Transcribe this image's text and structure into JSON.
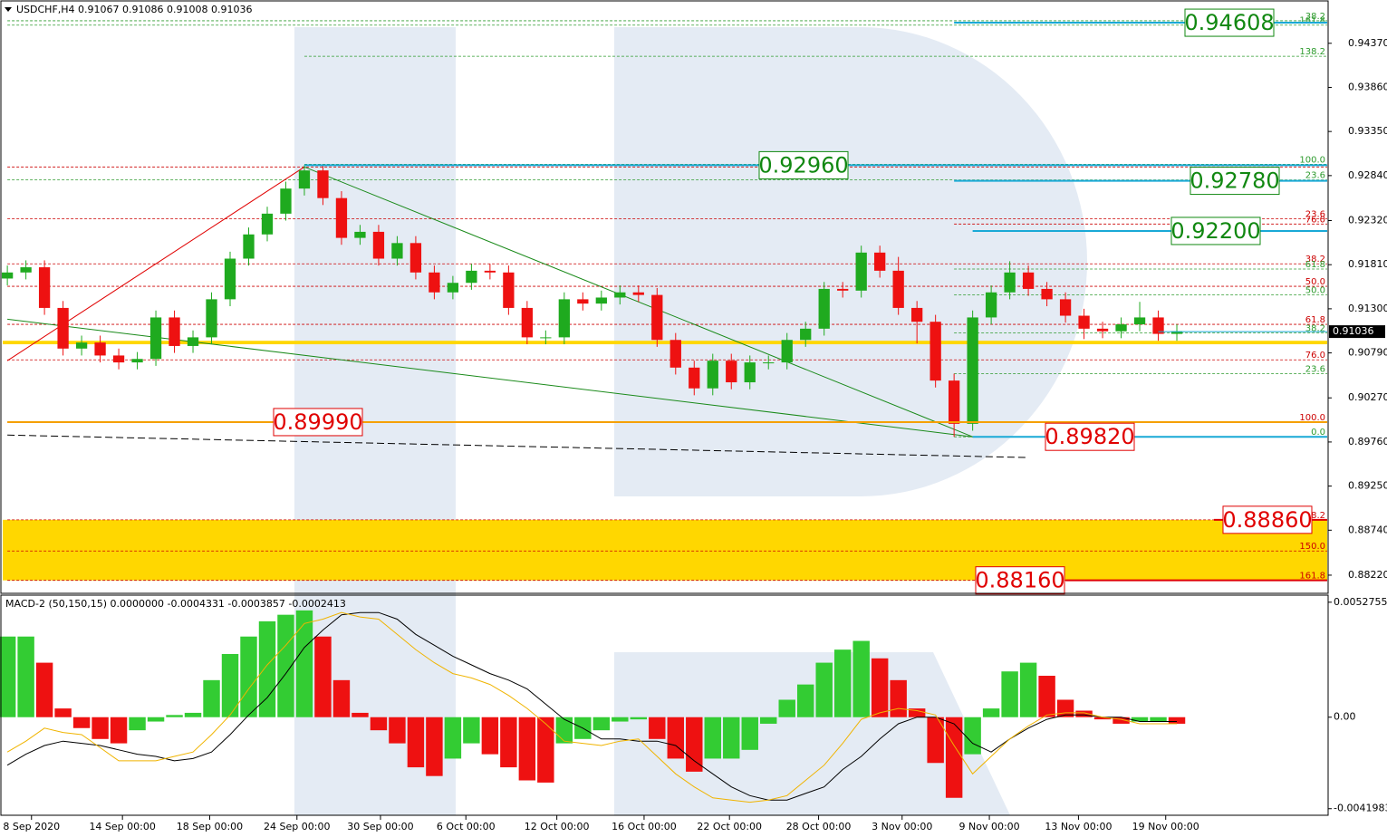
{
  "chart_data": [
    {
      "type": "candlestick",
      "title": "USDCHF,H4  0.91067 0.91086 0.91008 0.91036",
      "open": [
        0.9165,
        0.9172,
        0.9178,
        0.9131,
        0.9084,
        0.9091,
        0.9076,
        0.9068,
        0.9072,
        0.912,
        0.9087,
        0.9097,
        0.9141,
        0.9188,
        0.9216,
        0.924,
        0.9269,
        0.929,
        0.9258,
        0.9212,
        0.9219,
        0.9188,
        0.9206,
        0.9172,
        0.9149,
        0.916,
        0.9174,
        0.9172,
        0.9131,
        0.9097,
        0.9097,
        0.9141,
        0.9136,
        0.9143,
        0.9149,
        0.9146,
        0.9094,
        0.9062,
        0.9038,
        0.907,
        0.9045,
        0.9068,
        0.9068,
        0.9094,
        0.9107,
        0.9153,
        0.9151,
        0.9195,
        0.9174,
        0.9131,
        0.9115,
        0.9047,
        0.8997,
        0.912,
        0.9149,
        0.9172,
        0.9153,
        0.9141,
        0.9122,
        0.9107,
        0.9104,
        0.9112,
        0.912,
        0.9101
      ],
      "high": [
        0.918,
        0.9186,
        0.9186,
        0.9139,
        0.9099,
        0.9099,
        0.9084,
        0.908,
        0.9128,
        0.9128,
        0.9105,
        0.9149,
        0.9196,
        0.9224,
        0.9248,
        0.9277,
        0.9296,
        0.9296,
        0.9266,
        0.9227,
        0.9227,
        0.9214,
        0.9214,
        0.918,
        0.9168,
        0.9182,
        0.9182,
        0.918,
        0.9139,
        0.9105,
        0.9149,
        0.9149,
        0.9151,
        0.9157,
        0.9157,
        0.9154,
        0.9102,
        0.907,
        0.9078,
        0.9078,
        0.9076,
        0.9076,
        0.9102,
        0.9115,
        0.9161,
        0.9161,
        0.9203,
        0.9203,
        0.919,
        0.9139,
        0.9123,
        0.9055,
        0.9128,
        0.9157,
        0.9185,
        0.918,
        0.9161,
        0.9149,
        0.913,
        0.9115,
        0.912,
        0.9138,
        0.9128,
        0.9112
      ],
      "low": [
        0.9157,
        0.9164,
        0.9123,
        0.9076,
        0.9076,
        0.9068,
        0.906,
        0.906,
        0.9064,
        0.9079,
        0.9079,
        0.9089,
        0.9133,
        0.918,
        0.9208,
        0.9232,
        0.9261,
        0.925,
        0.9204,
        0.9204,
        0.918,
        0.918,
        0.9164,
        0.9141,
        0.9141,
        0.9152,
        0.9164,
        0.9123,
        0.9089,
        0.9089,
        0.9089,
        0.9128,
        0.9128,
        0.9135,
        0.9138,
        0.9086,
        0.9054,
        0.903,
        0.903,
        0.9037,
        0.9037,
        0.906,
        0.906,
        0.9086,
        0.9099,
        0.9143,
        0.9143,
        0.9166,
        0.9123,
        0.909,
        0.9039,
        0.8982,
        0.8989,
        0.9112,
        0.9141,
        0.9145,
        0.9133,
        0.9114,
        0.9095,
        0.9096,
        0.9096,
        0.9104,
        0.9093,
        0.9093
      ],
      "close": [
        0.9172,
        0.9178,
        0.9131,
        0.9084,
        0.9091,
        0.9076,
        0.9068,
        0.9072,
        0.912,
        0.9087,
        0.9097,
        0.9141,
        0.9188,
        0.9216,
        0.924,
        0.9269,
        0.929,
        0.9258,
        0.9212,
        0.9219,
        0.9188,
        0.9206,
        0.9172,
        0.9149,
        0.916,
        0.9174,
        0.9172,
        0.9131,
        0.9097,
        0.9097,
        0.9141,
        0.9136,
        0.9143,
        0.9149,
        0.9146,
        0.9094,
        0.9062,
        0.9038,
        0.907,
        0.9045,
        0.9068,
        0.9068,
        0.9094,
        0.9107,
        0.9153,
        0.9151,
        0.9195,
        0.9174,
        0.9131,
        0.9115,
        0.9047,
        0.8997,
        0.912,
        0.9149,
        0.9172,
        0.9153,
        0.9141,
        0.9122,
        0.9107,
        0.9104,
        0.9112,
        0.912,
        0.9101,
        0.9104
      ],
      "up_color": "#1faa1f",
      "down_color": "#ee1111",
      "xlim": [
        -0.25,
        71.1
      ],
      "ylim": [
        0.8801,
        0.9486
      ],
      "yticks": [
        {
          "value": 0.9437,
          "label": "0.94370"
        },
        {
          "value": 0.9386,
          "label": "0.93860"
        },
        {
          "value": 0.9335,
          "label": "0.93350"
        },
        {
          "value": 0.9284,
          "label": "0.92840"
        },
        {
          "value": 0.9232,
          "label": "0.92320"
        },
        {
          "value": 0.9181,
          "label": "0.91810"
        },
        {
          "value": 0.913,
          "label": "0.91300"
        },
        {
          "value": 0.9079,
          "label": "0.90790"
        },
        {
          "value": 0.9027,
          "label": "0.90270"
        },
        {
          "value": 0.8976,
          "label": "0.89760"
        },
        {
          "value": 0.8925,
          "label": "0.89250"
        },
        {
          "value": 0.8874,
          "label": "0.88740"
        },
        {
          "value": 0.8822,
          "label": "0.88220"
        }
      ],
      "xticks": [
        {
          "value": 1.3,
          "label": "8 Sep 2020"
        },
        {
          "value": 6.2,
          "label": "14 Sep 00:00"
        },
        {
          "value": 10.9,
          "label": "18 Sep 00:00"
        },
        {
          "value": 15.6,
          "label": "24 Sep 00:00"
        },
        {
          "value": 20.1,
          "label": "30 Sep 00:00"
        },
        {
          "value": 24.7,
          "label": "6 Oct 00:00"
        },
        {
          "value": 29.6,
          "label": "12 Oct 00:00"
        },
        {
          "value": 34.3,
          "label": "16 Oct 00:00"
        },
        {
          "value": 38.9,
          "label": "22 Oct 00:00"
        },
        {
          "value": 43.7,
          "label": "28 Oct 00:00"
        },
        {
          "value": 48.2,
          "label": "3 Nov 00:00"
        },
        {
          "value": 52.9,
          "label": "9 Nov 00:00"
        },
        {
          "value": 57.7,
          "label": "13 Nov 00:00"
        },
        {
          "value": 62.4,
          "label": "19 Nov 00:00"
        }
      ],
      "last": {
        "value": 0.91036,
        "label": "0.91036"
      },
      "zones": [
        [
          0.9089,
          0.9093
        ],
        [
          0.8816,
          0.8886
        ]
      ],
      "zone_color": "#ffd700",
      "levels": [
        {
          "value": 0.9463,
          "label": "38.2",
          "color": "#2e9b2e",
          "from": 0
        },
        {
          "value": 0.9458,
          "label": "161.8",
          "color": "#2e9b2e",
          "from": 0
        },
        {
          "value": 0.9422,
          "label": "138.2",
          "color": "#2e9b2e",
          "from": 16
        },
        {
          "value": 0.9297,
          "label": "100.0",
          "color": "#2e9b2e",
          "from": 16
        },
        {
          "value": 0.9294,
          "color": "#cc0000",
          "from": 0
        },
        {
          "value": 0.9279,
          "label": "23.6",
          "color": "#2e9b2e",
          "from": 0
        },
        {
          "value": 0.9234,
          "label": "23.6",
          "color": "#cc0000",
          "from": 0
        },
        {
          "value": 0.9228,
          "label": "76.0",
          "color": "#cc0000",
          "from": 51
        },
        {
          "value": 0.9182,
          "label": "38.2",
          "color": "#cc0000",
          "from": 0
        },
        {
          "value": 0.9176,
          "label": "61.8",
          "color": "#2e9b2e",
          "from": 51
        },
        {
          "value": 0.9156,
          "label": "50.0",
          "color": "#cc0000",
          "from": 0
        },
        {
          "value": 0.9146,
          "label": "50.0",
          "color": "#2e9b2e",
          "from": 51
        },
        {
          "value": 0.9112,
          "label": "61.8",
          "color": "#cc0000",
          "from": 0
        },
        {
          "value": 0.9102,
          "label": "38.2",
          "color": "#2e9b2e",
          "from": 51
        },
        {
          "value": 0.9071,
          "label": "76.0",
          "color": "#cc0000",
          "from": 0
        },
        {
          "value": 0.9055,
          "label": "23.6",
          "color": "#2e9b2e",
          "from": 51
        },
        {
          "value": 0.8999,
          "label": "100.0",
          "color": "#cc0000",
          "from": 0
        },
        {
          "value": 0.8982,
          "label": "0.0",
          "color": "#2e9b2e",
          "from": 51
        },
        {
          "value": 0.8886,
          "label": "138.2",
          "color": "#cc0000",
          "from": 0
        },
        {
          "value": 0.885,
          "label": "150.0",
          "color": "#cc0000",
          "from": 0
        },
        {
          "value": 0.8816,
          "label": "161.8",
          "color": "#cc0000",
          "from": 0
        }
      ],
      "targets": [
        {
          "value": 0.94608,
          "label": "0.94608",
          "color": "#118811",
          "line_color": "#19a9d6",
          "from": 51
        },
        {
          "value": 0.9296,
          "label": "0.92960",
          "color": "#118811",
          "line_color": "#19a9d6",
          "from": 16
        },
        {
          "value": 0.9278,
          "label": "0.92780",
          "color": "#118811",
          "line_color": "#19a9d6",
          "from": 51
        },
        {
          "value": 0.922,
          "label": "0.92200",
          "color": "#118811",
          "line_color": "#19a9d6",
          "from": 52
        },
        {
          "value": 0.8999,
          "label": "0.89990",
          "color": "#e00000",
          "line_color": "#f5a000",
          "from": 0
        },
        {
          "value": 0.8982,
          "label": "0.89820",
          "color": "#e00000",
          "line_color": "#19a9d6",
          "from": 52
        },
        {
          "value": 0.8886,
          "label": "0.88860",
          "color": "#e00000",
          "line_color": "#e00000",
          "from": 65
        },
        {
          "value": 0.8816,
          "label": "0.88160",
          "color": "#e00000",
          "line_color": "#e00000",
          "from": 57
        }
      ],
      "trendlines": [
        {
          "from": [
            0,
            0.907
          ],
          "to": [
            16,
            0.9294
          ],
          "color": "#e00000"
        },
        {
          "from": [
            16,
            0.9294
          ],
          "to": [
            52,
            0.8982
          ],
          "color": "#1a8a1a"
        },
        {
          "from": [
            0,
            0.9118
          ],
          "to": [
            52,
            0.8982
          ],
          "color": "#1a8a1a"
        },
        {
          "from": [
            0,
            0.8984
          ],
          "to": [
            55,
            0.8958
          ],
          "color": "#000000",
          "dashed": true
        }
      ]
    },
    {
      "type": "macd",
      "title": "MACD-2 (50,150,15) 0.0000000 -0.0004331 -0.0003857 -0.0002413",
      "xlim": [
        -0.25,
        71.1
      ],
      "ylim": [
        -0.0045,
        0.0056
      ],
      "yticks": [
        0.0052755,
        {
          "value": 0,
          "label": "0.00"
        },
        -0.0041983
      ],
      "histogram": [
        0.0037,
        0.0037,
        0.0025,
        0.0004,
        -0.0005,
        -0.001,
        -0.0012,
        -0.0006,
        -0.0002,
        0.0001,
        0.0002,
        0.0017,
        0.0029,
        0.0037,
        0.0044,
        0.0047,
        0.0049,
        0.0037,
        0.0017,
        0.0002,
        -0.0006,
        -0.0012,
        -0.0023,
        -0.0027,
        -0.0019,
        -0.0012,
        -0.0017,
        -0.0023,
        -0.0029,
        -0.003,
        -0.0012,
        -0.001,
        -0.0006,
        -0.0002,
        -0.0001,
        -0.001,
        -0.0019,
        -0.0025,
        -0.0019,
        -0.0019,
        -0.0015,
        -0.0003,
        0.0008,
        0.0015,
        0.0025,
        0.0031,
        0.0035,
        0.0027,
        0.0017,
        0.0004,
        -0.0021,
        -0.0037,
        -0.0017,
        0.0004,
        0.0021,
        0.0025,
        0.0019,
        0.0008,
        0.0003,
        -0.0001,
        -0.0003,
        -0.0002,
        -0.0002,
        -0.0003
      ],
      "rise_color": "#33cc33",
      "fall_color": "#ee1111",
      "lines": [
        {
          "color": "#000000",
          "values": [
            -0.0022,
            -0.0017,
            -0.0013,
            -0.0011,
            -0.0012,
            -0.0013,
            -0.0015,
            -0.0017,
            -0.0018,
            -0.002,
            -0.0019,
            -0.0016,
            -0.0008,
            0.0001,
            0.0009,
            0.002,
            0.0032,
            0.004,
            0.0047,
            0.0048,
            0.0048,
            0.0045,
            0.0038,
            0.0033,
            0.0028,
            0.0024,
            0.002,
            0.0017,
            0.0013,
            0.0006,
            -0.0001,
            -0.0005,
            -0.001,
            -0.001,
            -0.0011,
            -0.0011,
            -0.0013,
            -0.002,
            -0.0026,
            -0.0032,
            -0.0036,
            -0.0038,
            -0.0038,
            -0.0035,
            -0.0032,
            -0.0024,
            -0.0018,
            -0.001,
            -0.0003,
            0,
            0,
            -0.0003,
            -0.0012,
            -0.0016,
            -0.001,
            -0.0005,
            -0.0001,
            0.0001,
            0.0001,
            0,
            0,
            -0.0002,
            -0.0002,
            -0.0002
          ]
        },
        {
          "color": "#f0b400",
          "values": [
            -0.0016,
            -0.0011,
            -0.0005,
            -0.0007,
            -0.0008,
            -0.0014,
            -0.002,
            -0.002,
            -0.002,
            -0.0018,
            -0.0016,
            -0.0008,
            0.0001,
            0.0013,
            0.0024,
            0.0033,
            0.0043,
            0.0045,
            0.0048,
            0.0046,
            0.0045,
            0.0038,
            0.0031,
            0.0025,
            0.002,
            0.0018,
            0.0015,
            0.001,
            0.0004,
            -0.0003,
            -0.0011,
            -0.0012,
            -0.0013,
            -0.0011,
            -0.001,
            -0.0018,
            -0.0026,
            -0.0032,
            -0.0037,
            -0.0038,
            -0.0039,
            -0.0038,
            -0.0036,
            -0.0029,
            -0.0022,
            -0.0012,
            -0.0001,
            0.0002,
            0.0004,
            0.0003,
            0.0001,
            -0.0013,
            -0.0026,
            -0.0018,
            -0.001,
            -0.0004,
            0.0001,
            0.0002,
            0.0002,
            0,
            -0.0001,
            -0.0003,
            -0.0003,
            -0.0003
          ]
        }
      ]
    }
  ]
}
